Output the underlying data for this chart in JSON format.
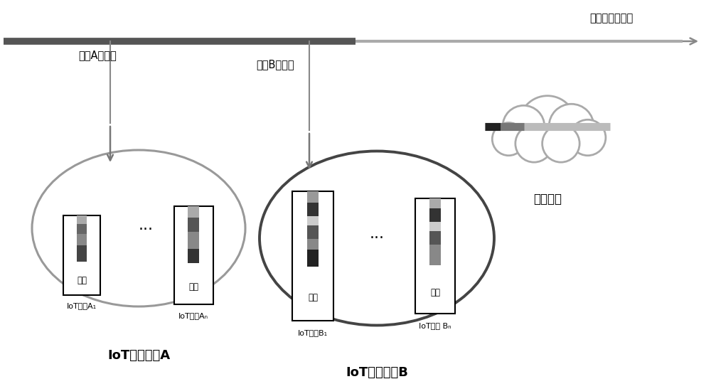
{
  "bg_color": "#ffffff",
  "text_model_a_exit": "模型A退出点",
  "text_model_b_exit": "模型B退出点",
  "text_cloud_exit": "云端模型退出点",
  "text_cloud_model": "云端模型",
  "text_iot_model_a": "IoT设备模型A",
  "text_iot_model_b": "IoT设备模型B",
  "text_data": "数据",
  "text_iot_a1": "IoT设备A",
  "text_iot_an": "IoT设备A",
  "text_iot_b1": "IoT设备B",
  "text_iot_bn": "IoT设备 B",
  "sub_a1": "1",
  "sub_an": "n",
  "sub_b1": "1",
  "sub_bn": "n"
}
